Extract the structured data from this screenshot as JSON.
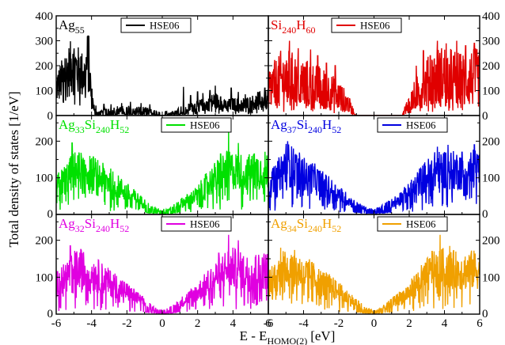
{
  "chart_data": {
    "type": "line",
    "xlabel": "E - E",
    "xlabel_sub": "HOMO(2)",
    "xlabel_unit": "[eV]",
    "ylabel": "Total density of states [1/eV]",
    "xlim": [
      -6,
      6
    ],
    "x_ticks": [
      "-6",
      "-4",
      "-2",
      "0",
      "2",
      "4",
      "6"
    ],
    "panels": [
      {
        "row": 0,
        "col": 0,
        "color": "#000000",
        "label_parts": [
          {
            "t": "Ag"
          },
          {
            "t": "55",
            "sub": true
          }
        ],
        "legend": "HSE06",
        "ylim": [
          0,
          400
        ],
        "y_ticks": [
          "0",
          "100",
          "200",
          "300",
          "400"
        ],
        "y_tick_values": [
          0,
          100,
          200,
          300,
          400
        ],
        "envelope": [
          [
            -6,
            110
          ],
          [
            -5.6,
            150
          ],
          [
            -5.3,
            180
          ],
          [
            -5.0,
            200
          ],
          [
            -4.7,
            170
          ],
          [
            -4.4,
            160
          ],
          [
            -4.2,
            220
          ],
          [
            -4.0,
            80
          ],
          [
            -3.8,
            12
          ],
          [
            -3.4,
            15
          ],
          [
            -3.0,
            20
          ],
          [
            -2.5,
            25
          ],
          [
            -2,
            25
          ],
          [
            -1.5,
            25
          ],
          [
            -1,
            22
          ],
          [
            -0.5,
            15
          ],
          [
            0,
            10
          ],
          [
            0.5,
            12
          ],
          [
            1,
            25
          ],
          [
            1.5,
            30
          ],
          [
            2,
            40
          ],
          [
            2.5,
            45
          ],
          [
            3,
            60
          ],
          [
            3.5,
            40
          ],
          [
            4,
            45
          ],
          [
            4.5,
            45
          ],
          [
            5,
            50
          ],
          [
            5.5,
            60
          ],
          [
            6,
            65
          ]
        ],
        "spikes": [
          [
            -4.15,
            320
          ],
          [
            -5.05,
            245
          ],
          [
            -5.5,
            230
          ],
          [
            -4.6,
            235
          ],
          [
            -3.75,
            40
          ],
          [
            -3.3,
            45
          ],
          [
            -2.9,
            45
          ],
          [
            -2.3,
            50
          ],
          [
            -1.8,
            55
          ],
          [
            -1.2,
            50
          ],
          [
            -0.7,
            45
          ],
          [
            1.2,
            115
          ],
          [
            1.6,
            80
          ],
          [
            2.0,
            95
          ],
          [
            2.3,
            90
          ],
          [
            2.7,
            100
          ],
          [
            3.0,
            120
          ],
          [
            3.3,
            75
          ],
          [
            3.9,
            110
          ],
          [
            4.3,
            95
          ],
          [
            4.7,
            85
          ],
          [
            5.4,
            95
          ],
          [
            5.8,
            110
          ]
        ],
        "noise": 0.6,
        "gap": [
          -0.15,
          0.15
        ]
      },
      {
        "row": 0,
        "col": 1,
        "color": "#e00000",
        "label_parts": [
          {
            "t": "Si"
          },
          {
            "t": "240",
            "sub": true
          },
          {
            "t": "H"
          },
          {
            "t": "60",
            "sub": true
          }
        ],
        "legend": "HSE06",
        "ylim": [
          0,
          400
        ],
        "y_ticks": [
          "0",
          "100",
          "200",
          "300",
          "400"
        ],
        "y_tick_values": [
          0,
          100,
          200,
          300,
          400
        ],
        "envelope": [
          [
            -6,
            110
          ],
          [
            -5.5,
            130
          ],
          [
            -5,
            150
          ],
          [
            -4.5,
            140
          ],
          [
            -4,
            130
          ],
          [
            -3.5,
            120
          ],
          [
            -3,
            110
          ],
          [
            -2.5,
            95
          ],
          [
            -2,
            80
          ],
          [
            -1.5,
            50
          ],
          [
            -1.2,
            20
          ],
          [
            -1.0,
            0
          ],
          [
            1.6,
            0
          ],
          [
            1.8,
            30
          ],
          [
            2.2,
            70
          ],
          [
            2.6,
            100
          ],
          [
            3,
            130
          ],
          [
            3.5,
            150
          ],
          [
            4,
            160
          ],
          [
            4.5,
            150
          ],
          [
            5,
            140
          ],
          [
            5.5,
            150
          ],
          [
            6,
            150
          ]
        ],
        "spikes": [
          [
            -4.8,
            300
          ],
          [
            -4.3,
            270
          ],
          [
            -5.3,
            260
          ],
          [
            -3.6,
            265
          ],
          [
            -3.2,
            240
          ],
          [
            -2.7,
            210
          ],
          [
            -2.2,
            200
          ],
          [
            3.6,
            300
          ],
          [
            4.1,
            290
          ],
          [
            4.7,
            300
          ],
          [
            5.2,
            280
          ],
          [
            5.7,
            290
          ],
          [
            2.8,
            260
          ],
          [
            3.2,
            240
          ],
          [
            2.4,
            200
          ]
        ],
        "noise": 0.8,
        "gap": [
          -1.0,
          1.6
        ]
      },
      {
        "row": 1,
        "col": 0,
        "color": "#00e000",
        "label_parts": [
          {
            "t": "Ag"
          },
          {
            "t": "33",
            "sub": true
          },
          {
            "t": "Si"
          },
          {
            "t": "240",
            "sub": true
          },
          {
            "t": "H"
          },
          {
            "t": "52",
            "sub": true
          }
        ],
        "legend": "HSE06",
        "ylim": [
          0,
          270
        ],
        "y_ticks": [
          "0",
          "100",
          "200"
        ],
        "y_tick_values": [
          0,
          100,
          200
        ],
        "envelope": [
          [
            -6,
            75
          ],
          [
            -5.5,
            95
          ],
          [
            -5,
            120
          ],
          [
            -4.5,
            120
          ],
          [
            -4,
            115
          ],
          [
            -3.5,
            100
          ],
          [
            -3,
            90
          ],
          [
            -2.5,
            75
          ],
          [
            -2,
            60
          ],
          [
            -1.5,
            45
          ],
          [
            -1,
            30
          ],
          [
            -0.5,
            15
          ],
          [
            0,
            10
          ],
          [
            0.5,
            15
          ],
          [
            1,
            30
          ],
          [
            1.5,
            40
          ],
          [
            2,
            55
          ],
          [
            2.5,
            80
          ],
          [
            3,
            100
          ],
          [
            3.5,
            120
          ],
          [
            4,
            120
          ],
          [
            4.5,
            115
          ],
          [
            5,
            115
          ],
          [
            5.5,
            120
          ],
          [
            6,
            120
          ]
        ],
        "spikes": [
          [
            -5.1,
            195
          ],
          [
            -4.7,
            165
          ],
          [
            3.75,
            235
          ],
          [
            4.3,
            195
          ],
          [
            3.3,
            165
          ],
          [
            5.2,
            165
          ]
        ],
        "noise": 0.45,
        "gap": null
      },
      {
        "row": 1,
        "col": 1,
        "color": "#0000e0",
        "label_parts": [
          {
            "t": "Ag"
          },
          {
            "t": "37",
            "sub": true
          },
          {
            "t": "Si"
          },
          {
            "t": "240",
            "sub": true
          },
          {
            "t": "H"
          },
          {
            "t": "52",
            "sub": true
          }
        ],
        "legend": "HSE06",
        "ylim": [
          0,
          270
        ],
        "y_ticks": [
          "0",
          "100",
          "200"
        ],
        "y_tick_values": [
          0,
          100,
          200
        ],
        "envelope": [
          [
            -6,
            75
          ],
          [
            -5.5,
            100
          ],
          [
            -5,
            140
          ],
          [
            -4.5,
            125
          ],
          [
            -4,
            110
          ],
          [
            -3.5,
            100
          ],
          [
            -3,
            85
          ],
          [
            -2.5,
            70
          ],
          [
            -2,
            55
          ],
          [
            -1.5,
            40
          ],
          [
            -1,
            25
          ],
          [
            -0.5,
            15
          ],
          [
            0,
            10
          ],
          [
            0.5,
            20
          ],
          [
            1,
            30
          ],
          [
            1.5,
            45
          ],
          [
            2,
            60
          ],
          [
            2.5,
            85
          ],
          [
            3,
            105
          ],
          [
            3.5,
            120
          ],
          [
            4,
            125
          ],
          [
            4.5,
            120
          ],
          [
            5,
            120
          ],
          [
            5.5,
            125
          ],
          [
            6,
            125
          ]
        ],
        "spikes": [
          [
            -4.9,
            200
          ],
          [
            -4.4,
            160
          ],
          [
            3.6,
            185
          ],
          [
            4.2,
            190
          ],
          [
            5.0,
            170
          ],
          [
            5.7,
            190
          ]
        ],
        "noise": 0.45,
        "gap": null
      },
      {
        "row": 2,
        "col": 0,
        "color": "#e000e0",
        "label_parts": [
          {
            "t": "Ag"
          },
          {
            "t": "32",
            "sub": true
          },
          {
            "t": "Si"
          },
          {
            "t": "240",
            "sub": true
          },
          {
            "t": "H"
          },
          {
            "t": "52",
            "sub": true
          }
        ],
        "legend": "HSE06",
        "ylim": [
          0,
          270
        ],
        "y_ticks": [
          "0",
          "100",
          "200"
        ],
        "y_tick_values": [
          0,
          100,
          200
        ],
        "envelope": [
          [
            -6,
            80
          ],
          [
            -5.5,
            100
          ],
          [
            -5,
            120
          ],
          [
            -4.5,
            120
          ],
          [
            -4,
            110
          ],
          [
            -3.5,
            100
          ],
          [
            -3,
            85
          ],
          [
            -2.5,
            75
          ],
          [
            -2,
            60
          ],
          [
            -1.5,
            45
          ],
          [
            -1,
            30
          ],
          [
            -0.5,
            15
          ],
          [
            0,
            8
          ],
          [
            0.5,
            15
          ],
          [
            1,
            30
          ],
          [
            1.5,
            45
          ],
          [
            2,
            60
          ],
          [
            2.5,
            80
          ],
          [
            3,
            100
          ],
          [
            3.5,
            120
          ],
          [
            4,
            125
          ],
          [
            4.5,
            115
          ],
          [
            5,
            110
          ],
          [
            5.5,
            115
          ],
          [
            6,
            120
          ]
        ],
        "spikes": [
          [
            -5.2,
            185
          ],
          [
            -4.6,
            175
          ],
          [
            3.75,
            215
          ],
          [
            4.3,
            200
          ],
          [
            3.2,
            165
          ],
          [
            5.3,
            160
          ]
        ],
        "noise": 0.45,
        "gap": null
      },
      {
        "row": 2,
        "col": 1,
        "color": "#f0a000",
        "label_parts": [
          {
            "t": "Ag"
          },
          {
            "t": "34",
            "sub": true
          },
          {
            "t": "Si"
          },
          {
            "t": "240",
            "sub": true
          },
          {
            "t": "H"
          },
          {
            "t": "52",
            "sub": true
          }
        ],
        "legend": "HSE06",
        "ylim": [
          0,
          270
        ],
        "y_ticks": [
          "0",
          "100",
          "200"
        ],
        "y_tick_values": [
          0,
          100,
          200
        ],
        "envelope": [
          [
            -6,
            80
          ],
          [
            -5.5,
            110
          ],
          [
            -5,
            130
          ],
          [
            -4.5,
            120
          ],
          [
            -4,
            110
          ],
          [
            -3.5,
            100
          ],
          [
            -3,
            85
          ],
          [
            -2.5,
            75
          ],
          [
            -2,
            60
          ],
          [
            -1.5,
            45
          ],
          [
            -1,
            30
          ],
          [
            -0.5,
            15
          ],
          [
            0,
            8
          ],
          [
            0.5,
            15
          ],
          [
            1,
            30
          ],
          [
            1.5,
            45
          ],
          [
            2,
            60
          ],
          [
            2.5,
            85
          ],
          [
            3,
            105
          ],
          [
            3.5,
            120
          ],
          [
            4,
            125
          ],
          [
            4.5,
            120
          ],
          [
            5,
            115
          ],
          [
            5.5,
            120
          ],
          [
            6,
            120
          ]
        ],
        "spikes": [
          [
            -5.3,
            180
          ],
          [
            -4.7,
            160
          ],
          [
            3.75,
            215
          ],
          [
            4.3,
            185
          ],
          [
            3.3,
            170
          ],
          [
            5.4,
            160
          ]
        ],
        "noise": 0.45,
        "gap": null
      }
    ]
  }
}
